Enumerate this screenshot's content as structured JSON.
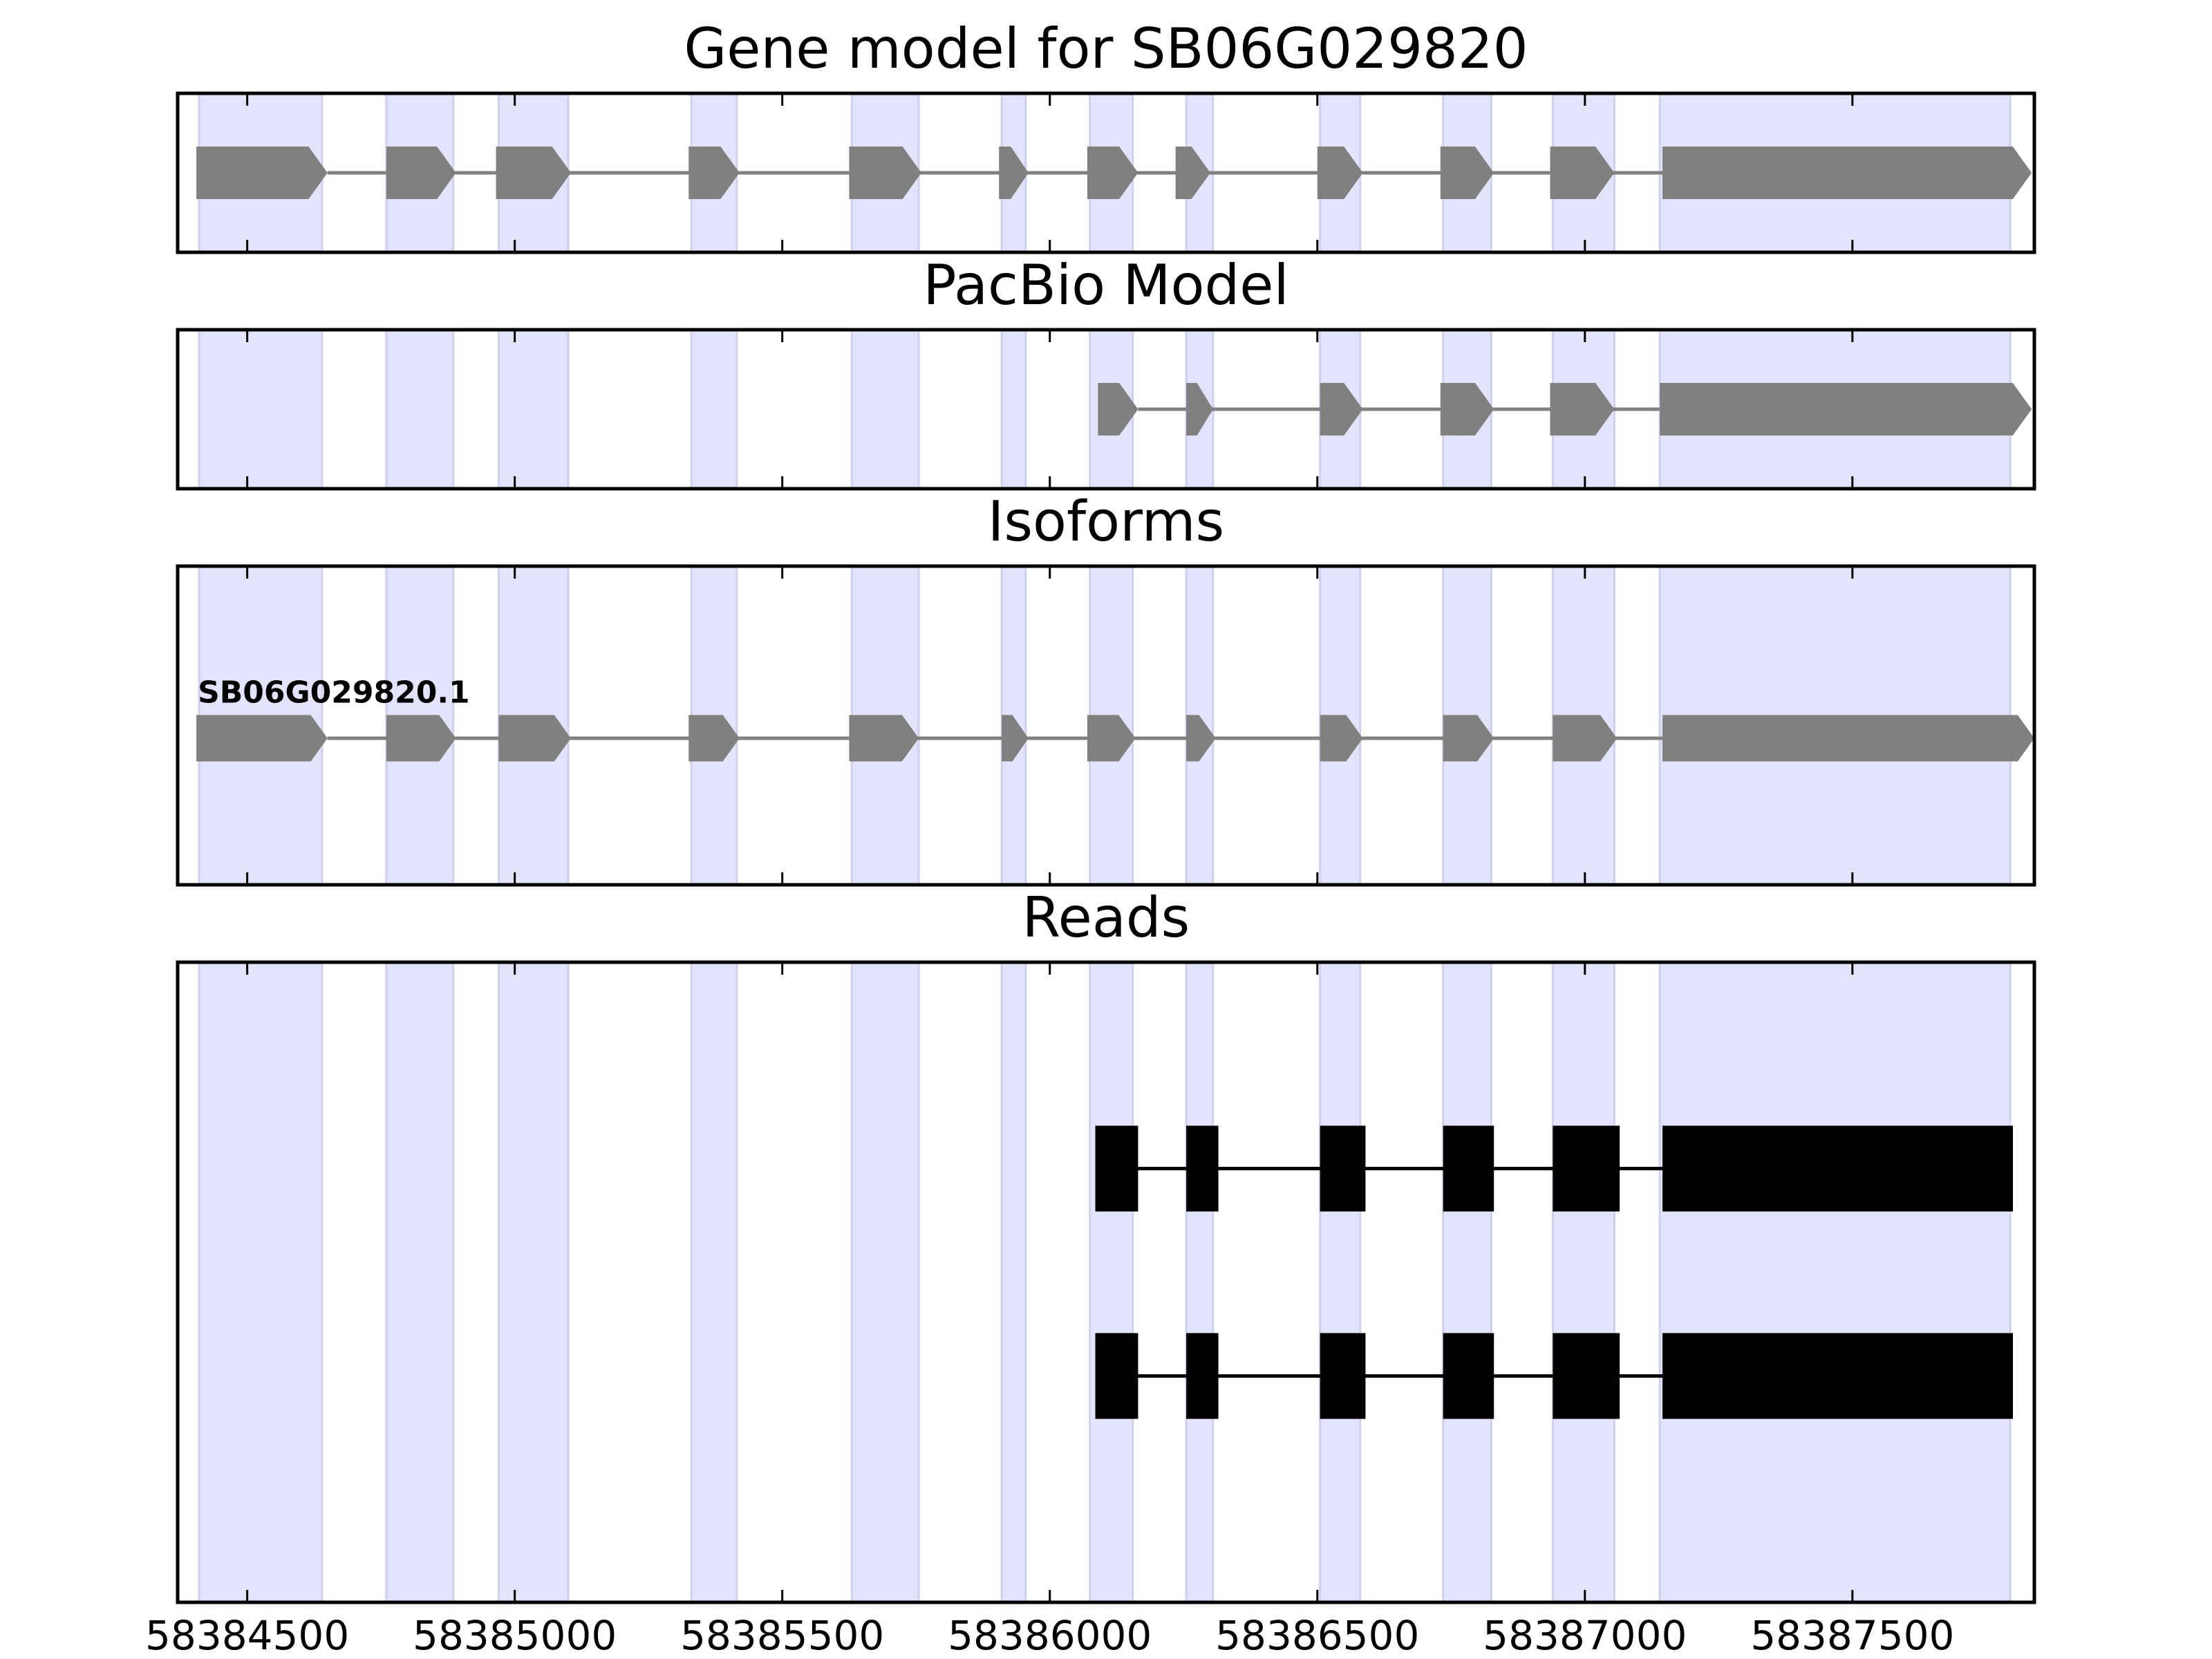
{
  "chart_data": {
    "type": "gene_model_tracks",
    "x_ticks": [
      58384500,
      58385000,
      58385500,
      58386000,
      58386500,
      58387000,
      58387500
    ],
    "x_tick_labels": [
      "58384500",
      "58385000",
      "58385500",
      "58386000",
      "58386500",
      "58387000",
      "58387500"
    ],
    "xlim": [
      58384370,
      58387840
    ],
    "grid": false,
    "shaded_exon_regions": [
      [
        58384410,
        58384640
      ],
      [
        58384760,
        58384885
      ],
      [
        58384970,
        58385100
      ],
      [
        58385330,
        58385415
      ],
      [
        58385630,
        58385755
      ],
      [
        58385910,
        58385955
      ],
      [
        58386075,
        58386155
      ],
      [
        58386255,
        58386305
      ],
      [
        58386505,
        58386580
      ],
      [
        58386735,
        58386825
      ],
      [
        58386940,
        58387055
      ],
      [
        58387140,
        58387795
      ]
    ],
    "colors": {
      "shade": "#e3e3fb",
      "shade_edge": "#cfcfee",
      "model_feature": "#808080",
      "read_feature": "#000000"
    },
    "panels": [
      {
        "title": "Gene model for SB06G029820",
        "strand": "+",
        "style": "model",
        "tracks": [
          {
            "label": "",
            "exons": [
              [
                58384405,
                58384650
              ],
              [
                58384760,
                58384890
              ],
              [
                58384965,
                58385105
              ],
              [
                58385325,
                58385420
              ],
              [
                58385625,
                58385760
              ],
              [
                58385905,
                58385960
              ],
              [
                58386070,
                58386165
              ],
              [
                58386235,
                58386300
              ],
              [
                58386500,
                58386585
              ],
              [
                58386730,
                58386830
              ],
              [
                58386935,
                58387055
              ],
              [
                58387145,
                58387835
              ]
            ]
          }
        ]
      },
      {
        "title": "PacBio Model",
        "strand": "+",
        "style": "model",
        "tracks": [
          {
            "label": "",
            "exons": [
              [
                58386090,
                58386165
              ],
              [
                58386255,
                58386305
              ],
              [
                58386505,
                58386585
              ],
              [
                58386730,
                58386830
              ],
              [
                58386935,
                58387055
              ],
              [
                58387140,
                58387835
              ]
            ]
          }
        ]
      },
      {
        "title": "Isoforms",
        "strand": "+",
        "style": "model",
        "tracks": [
          {
            "label": "SB06G029820.1",
            "exons": [
              [
                58384405,
                58384650
              ],
              [
                58384760,
                58384890
              ],
              [
                58384970,
                58385105
              ],
              [
                58385325,
                58385420
              ],
              [
                58385625,
                58385755
              ],
              [
                58385910,
                58385960
              ],
              [
                58386070,
                58386160
              ],
              [
                58386255,
                58386310
              ],
              [
                58386505,
                58386585
              ],
              [
                58386735,
                58386830
              ],
              [
                58386940,
                58387060
              ],
              [
                58387145,
                58387840
              ]
            ]
          }
        ]
      },
      {
        "title": "Reads",
        "strand": "",
        "style": "read",
        "tracks": [
          {
            "label": "",
            "exons": [
              [
                58386085,
                58386165
              ],
              [
                58386255,
                58386315
              ],
              [
                58386505,
                58386590
              ],
              [
                58386735,
                58386830
              ],
              [
                58386940,
                58387065
              ],
              [
                58387145,
                58387800
              ]
            ]
          },
          {
            "label": "",
            "exons": [
              [
                58386085,
                58386165
              ],
              [
                58386255,
                58386315
              ],
              [
                58386505,
                58386590
              ],
              [
                58386735,
                58386830
              ],
              [
                58386940,
                58387065
              ],
              [
                58387145,
                58387800
              ]
            ]
          }
        ]
      }
    ]
  }
}
